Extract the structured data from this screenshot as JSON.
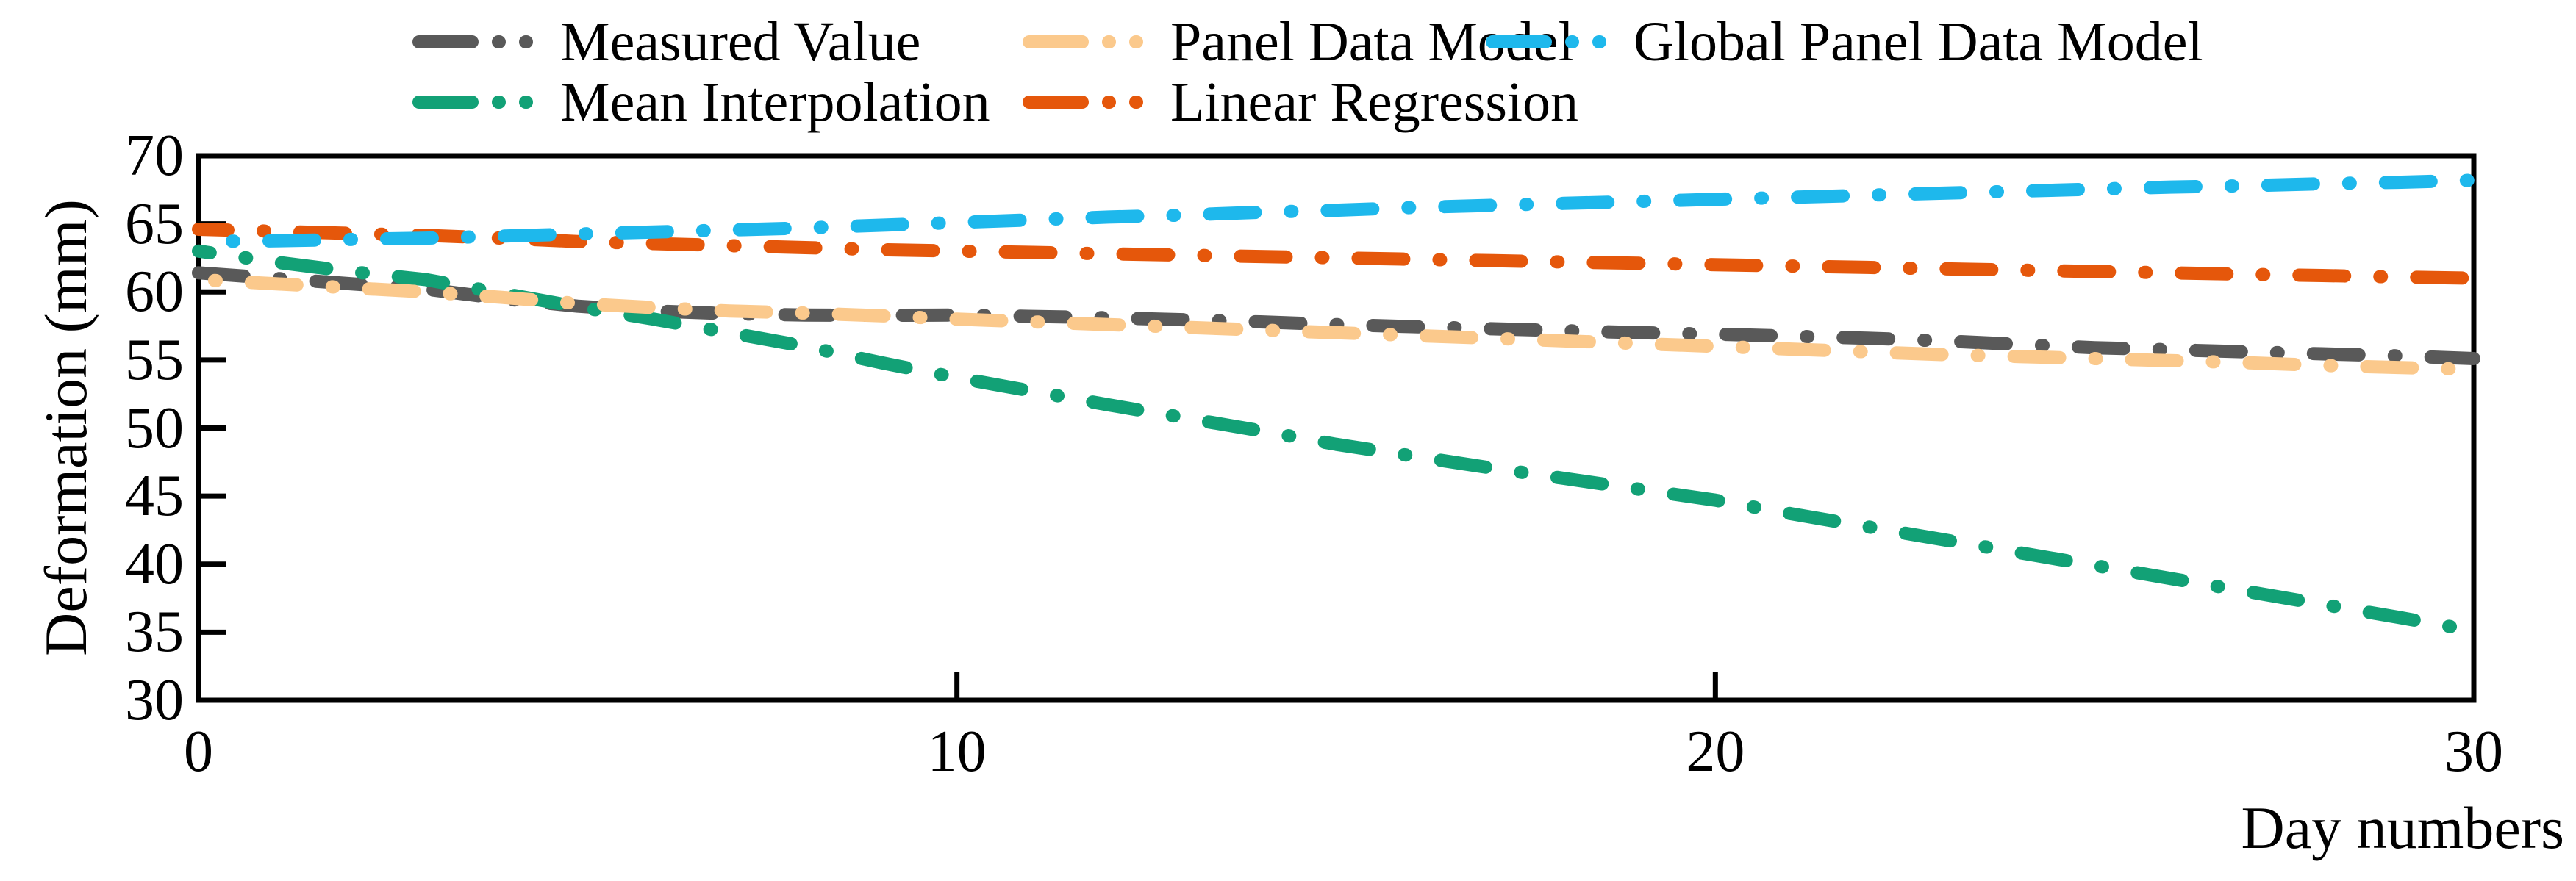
{
  "chart_data": {
    "type": "line",
    "title": "",
    "xlabel": "Day numbers",
    "ylabel": "Deformation (mm)",
    "xlim": [
      0,
      30
    ],
    "ylim": [
      30,
      70
    ],
    "x_ticks": [
      0,
      10,
      20,
      30
    ],
    "y_ticks": [
      70,
      65,
      60,
      55,
      50,
      45,
      40,
      35,
      30
    ],
    "grid": false,
    "legend_position": "top",
    "line_style": "dash-dot-dot",
    "axis_color": "#000000",
    "x": [
      0,
      1,
      2,
      3,
      4,
      5,
      6,
      7,
      8,
      9,
      10,
      11,
      12,
      13,
      14,
      15,
      16,
      17,
      18,
      19,
      20,
      21,
      22,
      23,
      24,
      25,
      26,
      27,
      28,
      29,
      30
    ],
    "series": [
      {
        "name": "Measured Value",
        "color": "#595959",
        "values": [
          61.4,
          61.0,
          60.6,
          60.2,
          59.5,
          58.95,
          58.6,
          58.4,
          58.3,
          58.28,
          58.3,
          58.2,
          58.1,
          57.95,
          57.8,
          57.6,
          57.45,
          57.3,
          57.15,
          57.0,
          56.9,
          56.75,
          56.6,
          56.4,
          56.15,
          55.9,
          55.75,
          55.6,
          55.45,
          55.3,
          55.1
        ]
      },
      {
        "name": "Mean Interpolation",
        "color": "#12A176",
        "values": [
          63.0,
          62.2,
          61.5,
          60.9,
          59.9,
          58.9,
          58.0,
          57.0,
          56.0,
          54.8,
          53.7,
          52.7,
          51.7,
          50.75,
          49.8,
          48.8,
          47.95,
          47.1,
          46.3,
          45.5,
          44.7,
          43.7,
          42.75,
          41.8,
          40.85,
          39.9,
          38.95,
          38.0,
          37.05,
          36.1,
          35.1
        ]
      },
      {
        "name": "Panel Data Model",
        "color": "#FBC98C",
        "values": [
          60.9,
          60.6,
          60.3,
          60.0,
          59.6,
          59.15,
          58.85,
          58.6,
          58.45,
          58.25,
          58.0,
          57.8,
          57.6,
          57.4,
          57.2,
          57.0,
          56.8,
          56.6,
          56.4,
          56.2,
          56.0,
          55.8,
          55.6,
          55.4,
          55.25,
          55.1,
          54.95,
          54.8,
          54.6,
          54.45,
          54.3
        ]
      },
      {
        "name": "Linear Regression",
        "color": "#E5570B",
        "values": [
          64.6,
          64.45,
          64.3,
          64.15,
          63.95,
          63.7,
          63.55,
          63.4,
          63.25,
          63.1,
          63.0,
          62.9,
          62.8,
          62.7,
          62.6,
          62.5,
          62.4,
          62.3,
          62.2,
          62.1,
          62.0,
          61.9,
          61.8,
          61.7,
          61.6,
          61.5,
          61.4,
          61.3,
          61.2,
          61.1,
          61.0
        ]
      },
      {
        "name": "Global Panel Data Model",
        "color": "#1EB8EC",
        "values": [
          63.7,
          63.75,
          63.85,
          63.95,
          64.1,
          64.25,
          64.4,
          64.55,
          64.7,
          64.9,
          65.1,
          65.3,
          65.5,
          65.65,
          65.85,
          66.0,
          66.2,
          66.35,
          66.5,
          66.65,
          66.8,
          66.95,
          67.1,
          67.25,
          67.4,
          67.55,
          67.7,
          67.8,
          67.95,
          68.05,
          68.2
        ]
      }
    ],
    "legend_rows": [
      [
        "Measured Value",
        "Panel Data Model",
        "Global Panel Data Model"
      ],
      [
        "Mean Interpolation",
        "Linear Regression"
      ]
    ]
  }
}
